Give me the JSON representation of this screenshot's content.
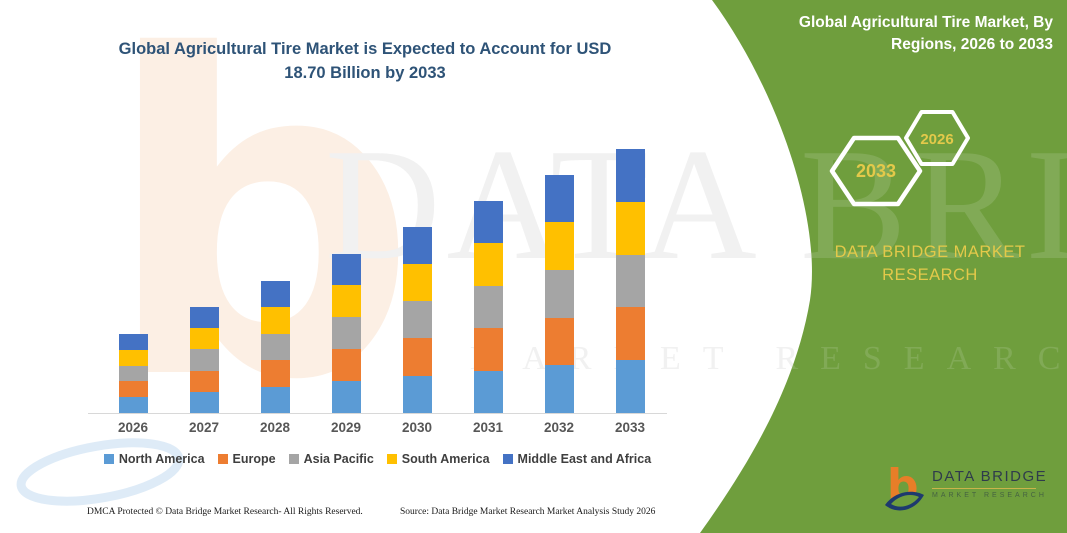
{
  "header": {
    "title_line1": "Global Agricultural Tire Market is Expected to Account for USD",
    "title_line2": "18.70 Billion by 2033",
    "title_color": "#2E5377"
  },
  "side_panel": {
    "background_color": "#6F9E3D",
    "accent_yellow": "#E3C94A",
    "title_line1": "Global Agricultural Tire Market, By",
    "title_line2": "Regions, 2026 to 2033",
    "hexagon_back_year": "2033",
    "hexagon_front_year": "2026",
    "brand_line1": "DATA BRIDGE MARKET",
    "brand_line2": "RESEARCH"
  },
  "chart_data": {
    "type": "bar",
    "stacked": true,
    "title": "Global Agricultural Tire Market is Expected to Account for USD 18.70 Billion by 2033",
    "unit": "USD Billion",
    "categories": [
      "2026",
      "2027",
      "2028",
      "2029",
      "2030",
      "2031",
      "2032",
      "2033"
    ],
    "series": [
      {
        "name": "North America",
        "color": "#5B9BD5",
        "values": [
          1.12,
          1.5,
          1.88,
          2.26,
          2.64,
          3.0,
          3.38,
          3.74
        ]
      },
      {
        "name": "Europe",
        "color": "#ED7D31",
        "values": [
          1.12,
          1.5,
          1.88,
          2.26,
          2.64,
          3.0,
          3.38,
          3.74
        ]
      },
      {
        "name": "Asia Pacific",
        "color": "#A5A5A5",
        "values": [
          1.12,
          1.5,
          1.88,
          2.26,
          2.64,
          3.0,
          3.38,
          3.74
        ]
      },
      {
        "name": "South America",
        "color": "#FFC000",
        "values": [
          1.12,
          1.5,
          1.88,
          2.26,
          2.64,
          3.0,
          3.38,
          3.74
        ]
      },
      {
        "name": "Middle East and Africa",
        "color": "#4472C4",
        "values": [
          1.12,
          1.5,
          1.88,
          2.26,
          2.64,
          3.0,
          3.38,
          3.74
        ]
      }
    ],
    "totals": [
      5.6,
      7.5,
      9.4,
      11.3,
      13.2,
      15.0,
      16.9,
      18.7
    ],
    "ylim": [
      0,
      18.7
    ],
    "gridlines": false,
    "legend_position": "bottom"
  },
  "watermark": {
    "letter": "b",
    "line1": "DATA BRIDGE",
    "line2": "MARKET RESEARCH"
  },
  "footer_logo": {
    "title": "DATA BRIDGE",
    "subtitle": "MARKET RESEARCH"
  },
  "footer": {
    "dmca": "DMCA Protected © Data Bridge Market Research-  All Rights Reserved.",
    "source": "Source: Data Bridge Market Research  Market Analysis Study 2026"
  }
}
